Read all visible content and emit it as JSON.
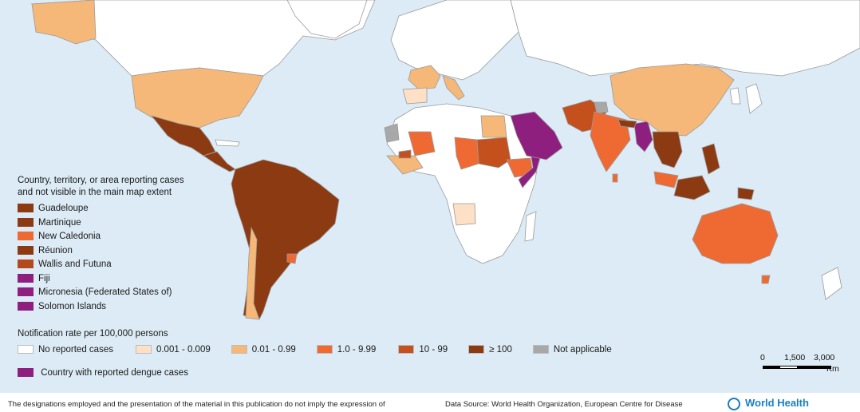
{
  "legend_territories": {
    "title_line1": "Country, territory, or area reporting cases",
    "title_line2": "and not visible in the main map extent",
    "items": [
      {
        "label": "Guadeloupe",
        "color": "#8c3a12"
      },
      {
        "label": "Martinique",
        "color": "#8c3a12"
      },
      {
        "label": "New Caledonia",
        "color": "#ef6a33"
      },
      {
        "label": "Réunion",
        "color": "#8c3a12"
      },
      {
        "label": "Wallis and Futuna",
        "color": "#b44a1c"
      },
      {
        "label": "Fiji",
        "color": "#8f1f7f"
      },
      {
        "label": "Micronesia (Federated States of)",
        "color": "#8f1f7f"
      },
      {
        "label": "Solomon Islands",
        "color": "#8f1f7f"
      }
    ]
  },
  "legend_rate": {
    "title": "Notification rate per 100,000 persons",
    "items": [
      {
        "label": "No reported cases",
        "color": "#ffffff"
      },
      {
        "label": "0.001 - 0.009",
        "color": "#fde0c5"
      },
      {
        "label": "0.01 - 0.99",
        "color": "#f6b878"
      },
      {
        "label": "1.0 - 9.99",
        "color": "#ef6a33"
      },
      {
        "label": "10 - 99",
        "color": "#c4501d"
      },
      {
        "label": "≥ 100",
        "color": "#8c3a12"
      },
      {
        "label": "Not applicable",
        "color": "#a8a8a8"
      }
    ],
    "dengue_label": "Country with reported dengue cases",
    "dengue_color": "#8f1f7f"
  },
  "scale_bar": {
    "labels": [
      "0",
      "1,500",
      "3,000"
    ],
    "unit": "Km"
  },
  "footer": {
    "disclaimer": "The designations employed and the presentation of the material in this publication do not imply the expression of",
    "source": "Data Source: World Health Organization, European Centre for Disease",
    "logo_text": "World Health"
  },
  "colors": {
    "ocean": "#dcebf5",
    "land_none": "#ffffff",
    "border": "#9a9a9a"
  }
}
